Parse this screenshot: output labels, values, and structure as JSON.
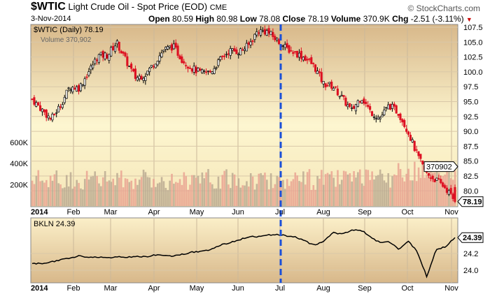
{
  "header": {
    "symbol": "$WTIC",
    "name": "Light Crude Oil - Spot Price (EOD)",
    "exchange": "CME",
    "date": "3-Nov-2014",
    "open_label": "Open",
    "open": "80.59",
    "high_label": "High",
    "high": "80.98",
    "low_label": "Low",
    "low": "78.08",
    "close_label": "Close",
    "close": "78.19",
    "volume_label": "Volume",
    "volume": "370.9K",
    "chg_label": "Chg",
    "chg": "-2.51 (-3.11%)",
    "brand": "© StockCharts.com"
  },
  "colors": {
    "up": "#000000",
    "down": "#dd1122",
    "vol_up": "#b8a890",
    "vol_down": "#e8a090",
    "marker": "#1a4fd8",
    "bg_top": "#d8b88a",
    "bg_mid": "#fdf6d0"
  },
  "chart_data": [
    {
      "type": "candlestick",
      "title": "$WTIC (Daily) 78.19",
      "volume_legend": "Volume 370,902",
      "ylim": [
        77.5,
        108.2
      ],
      "yticks": [
        "107.5",
        "105.0",
        "102.5",
        "100.0",
        "97.5",
        "95.0",
        "92.5",
        "90.0",
        "87.5",
        "85.0",
        "82.5",
        "80.0"
      ],
      "vol_ticks": [
        "600K",
        "400K",
        "200K"
      ],
      "last_price_label": "78.19",
      "last_volume_label": "370902",
      "weekly_closes": [
        95.4,
        93.7,
        92.0,
        94.4,
        97.5,
        97.3,
        100.0,
        102.7,
        102.8,
        104.9,
        101.8,
        99.0,
        99.5,
        101.5,
        103.7,
        104.3,
        102.0,
        100.6,
        99.8,
        100.0,
        102.0,
        103.6,
        103.4,
        104.4,
        106.9,
        106.8,
        105.4,
        104.0,
        103.2,
        102.4,
        101.0,
        98.0,
        97.6,
        95.6,
        93.4,
        95.9,
        93.3,
        92.2,
        94.4,
        93.1,
        90.0,
        85.9,
        82.8,
        81.8,
        80.5,
        78.19
      ]
    },
    {
      "type": "line",
      "title": "BKLN 24.39",
      "ylim": [
        23.88,
        24.55
      ],
      "yticks": [
        "24.2",
        "24.0"
      ],
      "last_label": "24.39",
      "weekly_closes": [
        24.08,
        24.08,
        24.1,
        24.12,
        24.15,
        24.17,
        24.15,
        24.16,
        24.15,
        24.16,
        24.15,
        24.17,
        24.16,
        24.18,
        24.18,
        24.17,
        24.19,
        24.22,
        24.22,
        24.25,
        24.3,
        24.33,
        24.36,
        24.4,
        24.4,
        24.42,
        24.43,
        24.41,
        24.4,
        24.35,
        24.3,
        24.34,
        24.45,
        24.43,
        24.48,
        24.48,
        24.4,
        24.33,
        24.34,
        24.25,
        24.35,
        24.22,
        23.92,
        24.25,
        24.28,
        24.39
      ]
    }
  ],
  "xaxis": {
    "labels": [
      "2014",
      "Feb",
      "Mar",
      "Apr",
      "May",
      "Jun",
      "Jul",
      "Aug",
      "Sep",
      "Oct",
      "Nov"
    ]
  }
}
